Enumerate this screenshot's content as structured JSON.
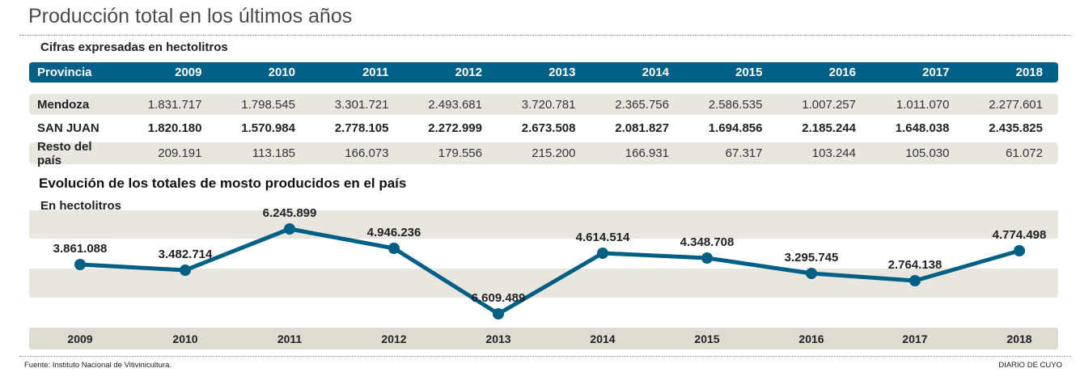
{
  "title": "Producción total en los últimos años",
  "table": {
    "subtitle": "Cifras expresadas en hectolitros",
    "header": [
      "Provincia",
      "2009",
      "2010",
      "2011",
      "2012",
      "2013",
      "2014",
      "2015",
      "2016",
      "2017",
      "2018"
    ],
    "rows": [
      {
        "label": "Mendoza",
        "values": [
          "1.831.717",
          "1.798.545",
          "3.301.721",
          "2.493.681",
          "3.720.781",
          "2.365.756",
          "2.586.535",
          "1.007.257",
          "1.011.070",
          "2.277.601"
        ]
      },
      {
        "label": "SAN JUAN",
        "values": [
          "1.820.180",
          "1.570.984",
          "2.778.105",
          "2.272.999",
          "2.673.508",
          "2.081.827",
          "1.694.856",
          "2.185.244",
          "1.648.038",
          "2.435.825"
        ]
      },
      {
        "label": "Resto del país",
        "values": [
          "209.191",
          "113.185",
          "166.073",
          "179.556",
          "215.200",
          "166.931",
          "67.317",
          "103.244",
          "105.030",
          "61.072"
        ]
      }
    ]
  },
  "chart_data": {
    "type": "line",
    "title": "Evolución de los totales de mosto producidos en el país",
    "ylabel": "En hectolitros",
    "categories": [
      "2009",
      "2010",
      "2011",
      "2012",
      "2013",
      "2014",
      "2015",
      "2016",
      "2017",
      "2018"
    ],
    "values": [
      3861088,
      3482714,
      6245899,
      4946236,
      6609489,
      4614514,
      4348708,
      3295745,
      2764138,
      4774498
    ],
    "data_labels": [
      "3.861.088",
      "3.482.714",
      "6.245.899",
      "4.946.236",
      "6.609.489",
      "4.614.514",
      "4.348.708",
      "3.295.745",
      "2.764.138",
      "4.774.498"
    ],
    "line_color": "#005f85",
    "grid": false,
    "legend": "none"
  },
  "footer": {
    "source": "Fuente: Instituto Nacional de Vitivinicultura.",
    "brand": "DIARIO DE CUYO"
  },
  "colors": {
    "header": "#005f85",
    "row_shade": "#e8e6df",
    "year_bar": "#dedbd0"
  }
}
